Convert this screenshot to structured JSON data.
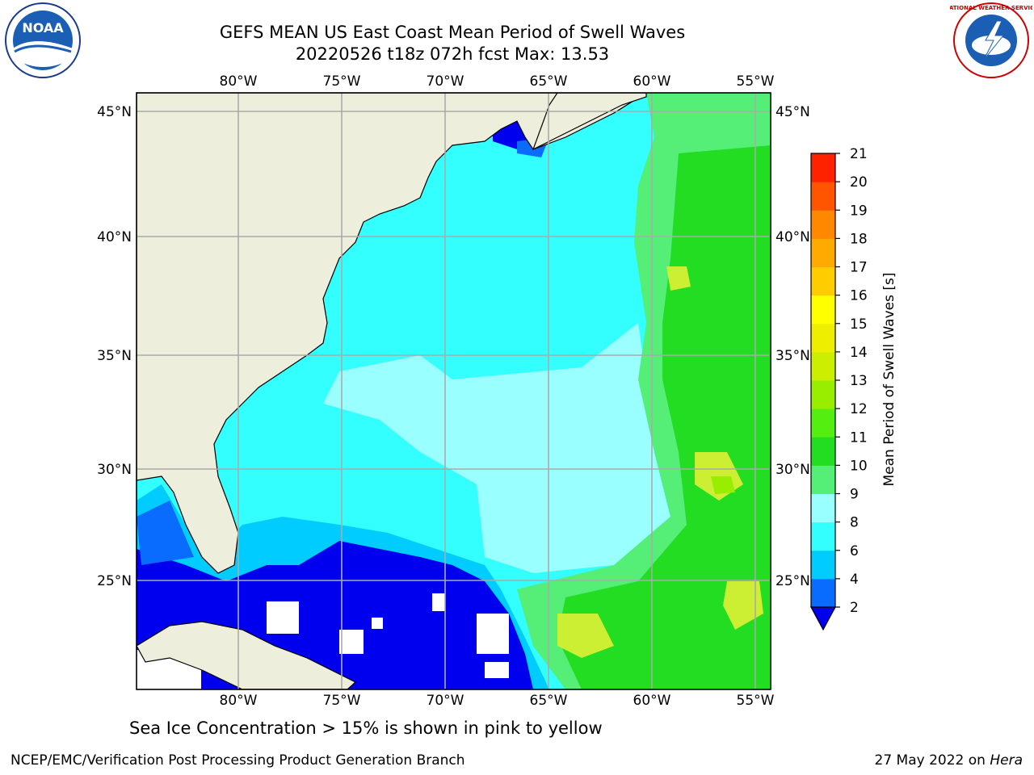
{
  "title_line1": "GEFS MEAN US East Coast Mean Period of Swell Waves",
  "title_line2": "20220526 t18z 072h fcst   Max: 13.53",
  "longitude_labels": [
    "80°W",
    "75°W",
    "70°W",
    "65°W",
    "60°W",
    "55°W"
  ],
  "latitude_labels": [
    "45°N",
    "40°N",
    "35°N",
    "30°N",
    "25°N"
  ],
  "colorbar": {
    "label": "Mean Period of Swell Waves [s]",
    "ticks": [
      "2",
      "4",
      "6",
      "8",
      "9",
      "10",
      "11",
      "12",
      "13",
      "14",
      "15",
      "16",
      "17",
      "18",
      "19",
      "20",
      "21"
    ],
    "colors": [
      "#0a6cff",
      "#00ccff",
      "#33ffff",
      "#99ffff",
      "#55ee77",
      "#22dd22",
      "#55ee11",
      "#99ee00",
      "#ccee00",
      "#eeee00",
      "#ffff00",
      "#ffcc00",
      "#ffaa00",
      "#ff8800",
      "#ff5500",
      "#ff2200",
      "#ff0000"
    ],
    "under_color": "#0000ee"
  },
  "colors": {
    "land": "#eeeedd",
    "grid": "#aaaaaa",
    "deep_blue": "#0000ee",
    "cyan": "#33ffff",
    "light_cyan": "#99ffff",
    "green": "#22dd22",
    "yellow_green": "#ccee33"
  },
  "note": "Sea Ice Concentration > 15% is shown in pink to yellow",
  "footer_left": "NCEP/EMC/Verification Post Processing Product Generation Branch",
  "footer_date": "27 May 2022 on",
  "footer_machine": "Hera",
  "logos": {
    "left_text": "NOAA",
    "right_ring_text": "NATIONAL WEATHER SERVICE"
  }
}
